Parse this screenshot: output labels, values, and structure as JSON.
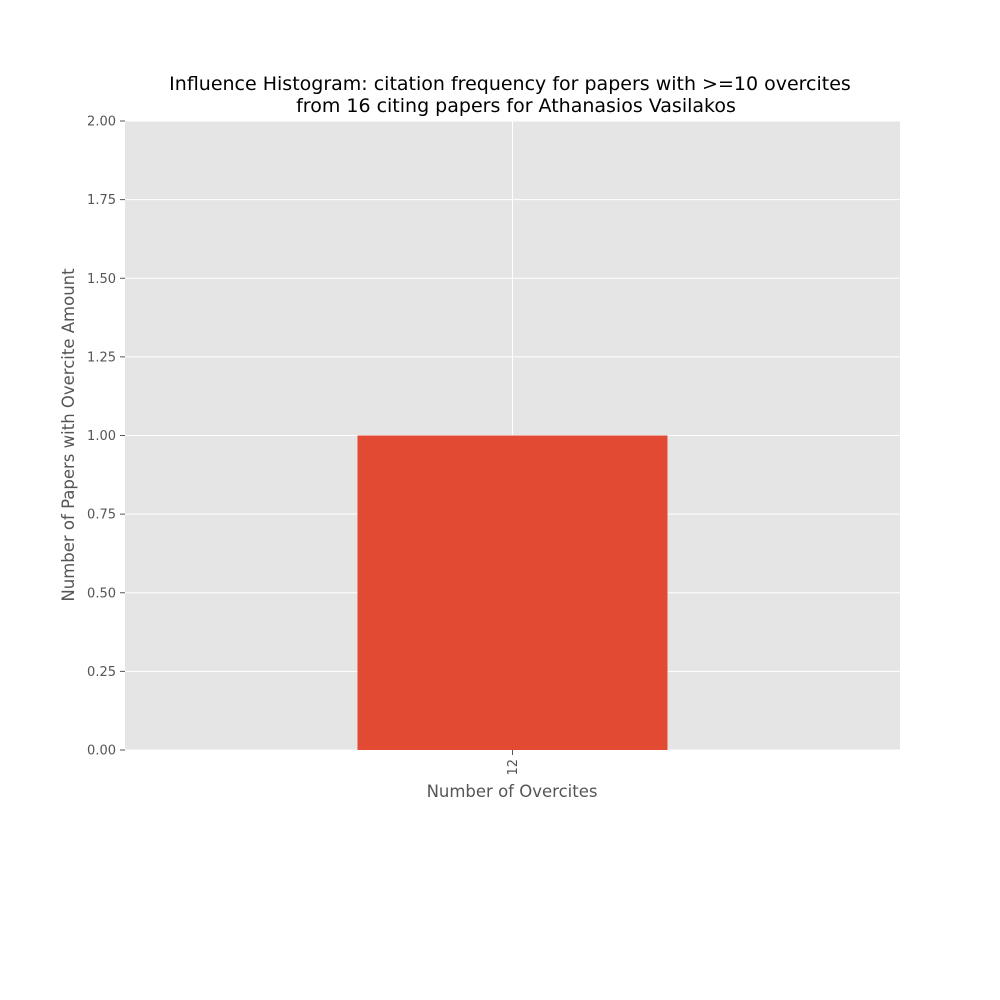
{
  "chart_data": {
    "type": "bar",
    "title_lines": [
      "Influence Histogram: citation frequency for papers with >=10 overcites",
      "from 16 citing papers for Athanasios Vasilakos"
    ],
    "xlabel": "Number of Overcites",
    "ylabel": "Number of Papers with Overcite Amount",
    "categories": [
      "12"
    ],
    "values": [
      1
    ],
    "ylim": [
      0,
      2
    ],
    "yticks": [
      "0.00",
      "0.25",
      "0.50",
      "0.75",
      "1.00",
      "1.25",
      "1.50",
      "1.75",
      "2.00"
    ],
    "grid": true,
    "colors": {
      "plot_background": "#e5e5e5",
      "grid": "#ffffff",
      "bar": "#e24a33",
      "tick_text": "#555555",
      "title_text": "#000000"
    }
  }
}
